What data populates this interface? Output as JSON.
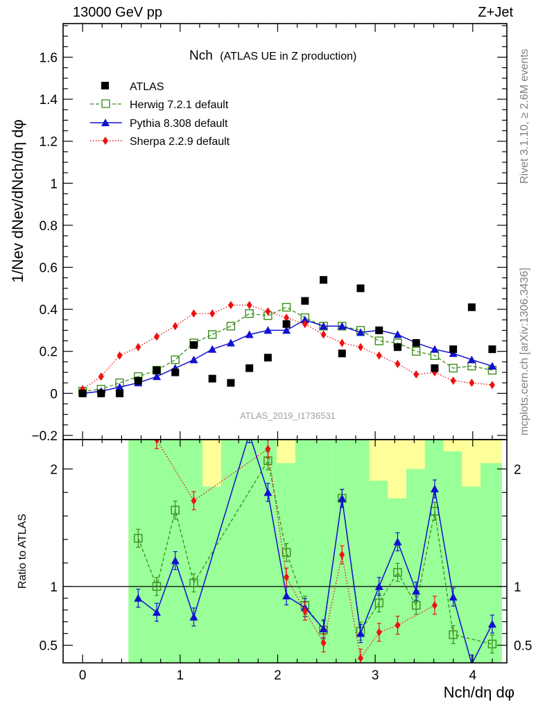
{
  "header": {
    "left": "13000 GeV pp",
    "right": "Z+Jet"
  },
  "side_text": {
    "rivet": "Rivet 3.1.10, ≥ 2.6M events",
    "mcplots": "mcplots.cern.ch [arXiv:1306.3436]"
  },
  "analysis_label": "ATLAS_2019_I1736531",
  "colors": {
    "ATLAS": "#000000",
    "Herwig": "#3a8c1a",
    "Pythia": "#1010d0",
    "Sherpa": "#ee1111",
    "band_inner": "#99ff99",
    "band_outer": "#ffff99"
  },
  "chart_data": [
    {
      "type": "scatter",
      "panel": "main",
      "title": "Nch",
      "subtitle": "(ATLAS UE in Z production)",
      "xlabel": "Nch/dη dφ",
      "ylabel": "1/Nev dNev/dNch/dη dφ",
      "xlim": [
        -0.2,
        4.35
      ],
      "ylim": [
        -0.22,
        1.76
      ],
      "xticks": [
        0,
        1,
        2,
        3,
        4
      ],
      "yticks": [
        -0.2,
        0,
        0.2,
        0.4,
        0.6,
        0.8,
        1,
        1.2,
        1.4,
        1.6
      ],
      "ytick_labels": [
        "−0.2",
        "0",
        "0.2",
        "0.4",
        "0.6",
        "0.8",
        "1",
        "1.2",
        "1.4",
        "1.6"
      ],
      "legend": [
        "ATLAS",
        "Herwig 7.2.1 default",
        "Pythia 8.308 default",
        "Sherpa 2.2.9 default"
      ],
      "series": [
        {
          "name": "ATLAS",
          "style": "square",
          "x": [
            0.0,
            0.19,
            0.38,
            0.57,
            0.76,
            0.95,
            1.14,
            1.33,
            1.52,
            1.71,
            1.9,
            2.09,
            2.28,
            2.47,
            2.66,
            2.85,
            3.04,
            3.23,
            3.42,
            3.61,
            3.8,
            3.99,
            4.2
          ],
          "values": [
            0.0,
            0.0,
            0.0,
            0.06,
            0.11,
            0.1,
            0.23,
            0.07,
            0.05,
            0.12,
            0.17,
            0.33,
            0.44,
            0.54,
            0.19,
            0.5,
            0.3,
            0.22,
            0.24,
            0.12,
            0.21,
            0.41,
            0.21
          ]
        },
        {
          "name": "Herwig 7.2.1 default",
          "style": "open-square-dashed",
          "x": [
            0.0,
            0.19,
            0.38,
            0.57,
            0.76,
            0.95,
            1.14,
            1.33,
            1.52,
            1.71,
            1.9,
            2.09,
            2.28,
            2.47,
            2.66,
            2.85,
            3.04,
            3.23,
            3.42,
            3.61,
            3.8,
            3.99,
            4.2
          ],
          "values": [
            0.01,
            0.02,
            0.05,
            0.08,
            0.11,
            0.16,
            0.24,
            0.28,
            0.32,
            0.38,
            0.37,
            0.41,
            0.36,
            0.32,
            0.32,
            0.3,
            0.25,
            0.24,
            0.2,
            0.18,
            0.12,
            0.13,
            0.11
          ]
        },
        {
          "name": "Pythia 8.308 default",
          "style": "triangle-solid",
          "x": [
            0.0,
            0.19,
            0.38,
            0.57,
            0.76,
            0.95,
            1.14,
            1.33,
            1.52,
            1.71,
            1.9,
            2.09,
            2.28,
            2.47,
            2.66,
            2.85,
            3.04,
            3.23,
            3.42,
            3.61,
            3.8,
            3.99,
            4.2
          ],
          "values": [
            0.0,
            0.01,
            0.03,
            0.05,
            0.08,
            0.12,
            0.16,
            0.21,
            0.24,
            0.28,
            0.3,
            0.3,
            0.35,
            0.32,
            0.32,
            0.29,
            0.3,
            0.28,
            0.24,
            0.21,
            0.19,
            0.16,
            0.13
          ]
        },
        {
          "name": "Sherpa 2.2.9 default",
          "style": "diamond-dotted",
          "x": [
            0.0,
            0.19,
            0.38,
            0.57,
            0.76,
            0.95,
            1.14,
            1.33,
            1.52,
            1.71,
            1.9,
            2.09,
            2.28,
            2.47,
            2.66,
            2.85,
            3.04,
            3.23,
            3.42,
            3.61,
            3.8,
            3.99,
            4.2
          ],
          "values": [
            0.02,
            0.08,
            0.18,
            0.22,
            0.27,
            0.32,
            0.38,
            0.38,
            0.42,
            0.42,
            0.39,
            0.36,
            0.33,
            0.28,
            0.24,
            0.22,
            0.18,
            0.14,
            0.09,
            0.1,
            0.06,
            0.05,
            0.04
          ]
        }
      ]
    },
    {
      "type": "line",
      "panel": "ratio",
      "ylabel": "Ratio to ATLAS",
      "xlim": [
        -0.2,
        4.35
      ],
      "ylim": [
        0.35,
        2.25
      ],
      "yticks": [
        0.5,
        1,
        2
      ],
      "ytick_labels": [
        "0.5",
        "1",
        "2"
      ],
      "bin_edges": [
        0.47,
        0.66,
        0.85,
        1.04,
        1.23,
        1.42,
        1.61,
        1.8,
        1.99,
        2.18,
        2.37,
        2.56,
        2.75,
        2.94,
        3.13,
        3.32,
        3.51,
        3.7,
        3.89,
        4.08,
        4.3
      ],
      "band_inner": [
        [
          0.35,
          2.25
        ],
        [
          0.35,
          2.25
        ],
        [
          0.35,
          2.25
        ],
        [
          0.35,
          2.25
        ],
        [
          0.35,
          1.85
        ],
        [
          0.35,
          2.25
        ],
        [
          0.35,
          2.25
        ],
        [
          0.35,
          2.25
        ],
        [
          0.35,
          2.05
        ],
        [
          0.35,
          2.25
        ],
        [
          0.35,
          2.25
        ],
        [
          0.35,
          2.25
        ],
        [
          0.35,
          2.25
        ],
        [
          0.35,
          1.9
        ],
        [
          0.35,
          1.75
        ],
        [
          0.35,
          2.0
        ],
        [
          0.35,
          2.25
        ],
        [
          0.35,
          2.15
        ],
        [
          0.35,
          1.85
        ],
        [
          0.35,
          2.05
        ]
      ],
      "band_outer": [
        [
          0.35,
          2.25
        ],
        [
          0.35,
          2.25
        ],
        [
          0.35,
          2.25
        ],
        [
          0.35,
          2.25
        ],
        [
          0.35,
          2.25
        ],
        [
          0.35,
          2.25
        ],
        [
          0.35,
          2.25
        ],
        [
          0.35,
          2.25
        ],
        [
          0.35,
          2.25
        ],
        [
          0.35,
          2.25
        ],
        [
          0.35,
          2.25
        ],
        [
          0.35,
          2.25
        ],
        [
          0.35,
          2.25
        ],
        [
          0.35,
          2.25
        ],
        [
          0.35,
          2.25
        ],
        [
          0.35,
          2.25
        ],
        [
          0.35,
          2.25
        ],
        [
          0.35,
          2.25
        ],
        [
          0.35,
          2.25
        ],
        [
          0.35,
          2.25
        ]
      ],
      "series": [
        {
          "name": "Herwig 7.2.1 default",
          "x": [
            0.57,
            0.76,
            0.95,
            1.14,
            1.9,
            2.09,
            2.28,
            2.47,
            2.66,
            2.85,
            3.04,
            3.23,
            3.42,
            3.61,
            3.8,
            4.2
          ],
          "values": [
            1.41,
            1.0,
            1.65,
            1.03,
            2.07,
            1.29,
            0.84,
            0.63,
            1.75,
            0.62,
            0.86,
            1.12,
            0.84,
            1.64,
            0.59,
            0.51
          ]
        },
        {
          "name": "Pythia 8.308 default",
          "x": [
            0.57,
            0.76,
            0.95,
            1.14,
            1.71,
            1.9,
            2.09,
            2.28,
            2.47,
            2.66,
            2.85,
            3.04,
            3.23,
            3.42,
            3.61,
            3.8,
            3.99,
            4.2
          ],
          "values": [
            0.9,
            0.78,
            1.22,
            0.74,
            2.3,
            1.8,
            0.92,
            0.82,
            0.64,
            1.75,
            0.6,
            1.0,
            1.38,
            0.96,
            1.83,
            0.91,
            0.34,
            0.68
          ]
        },
        {
          "name": "Sherpa 2.2.9 default",
          "x": [
            0.76,
            1.14,
            1.9,
            2.09,
            2.28,
            2.47,
            2.66,
            2.85,
            3.04,
            3.23,
            3.61
          ],
          "values": [
            2.25,
            1.73,
            2.17,
            1.08,
            0.79,
            0.52,
            1.27,
            0.39,
            0.61,
            0.67,
            0.84
          ]
        }
      ]
    }
  ]
}
